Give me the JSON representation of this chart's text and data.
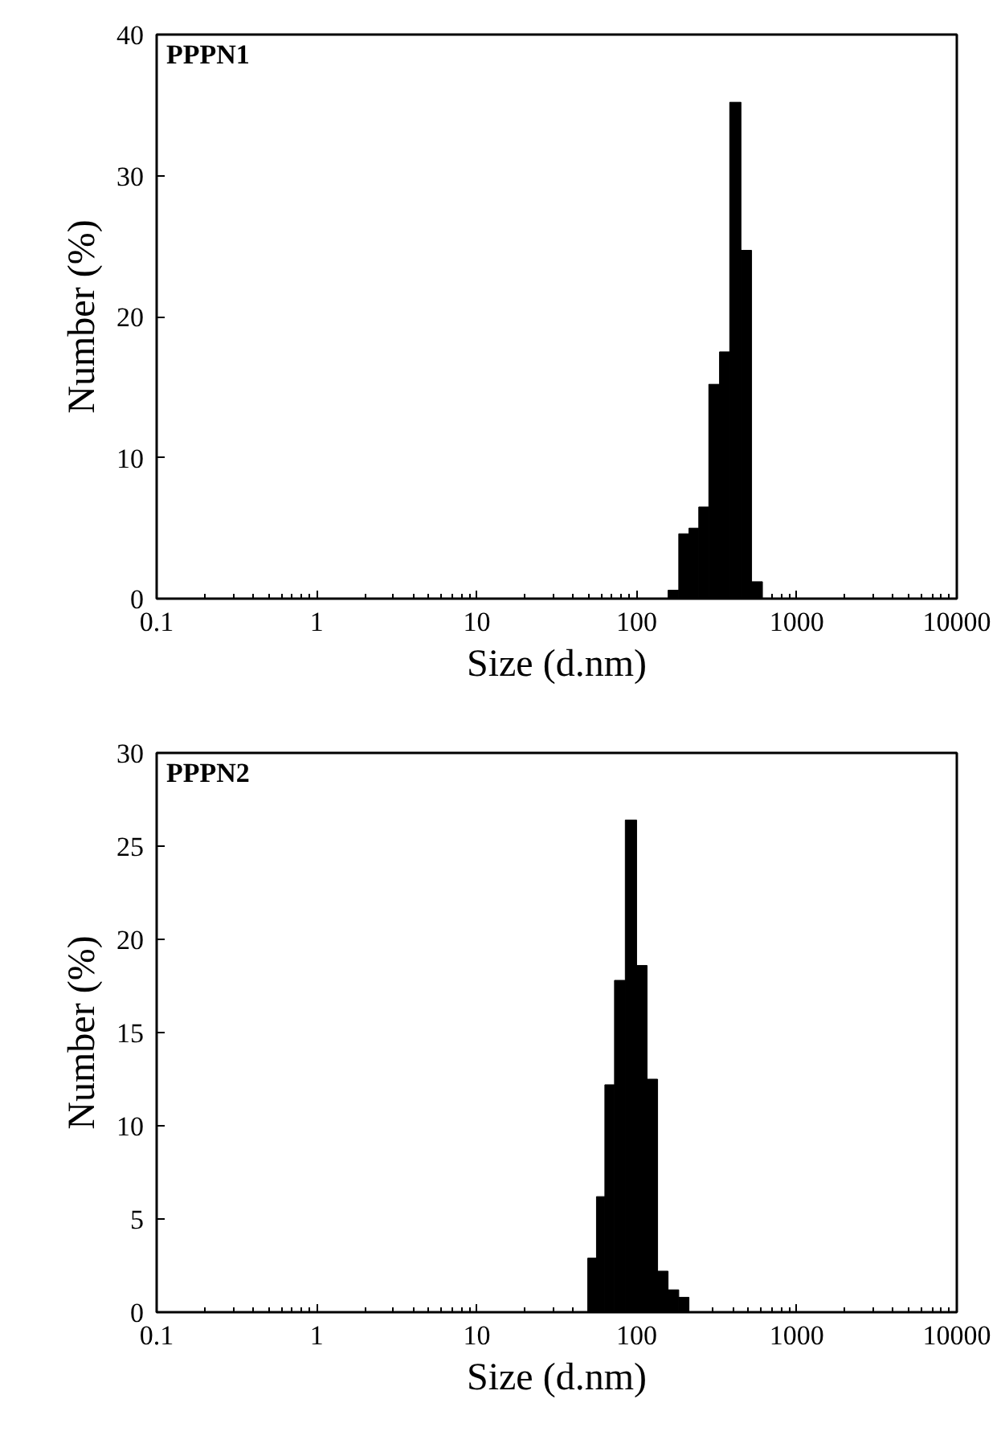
{
  "chart_data": [
    {
      "type": "histogram",
      "title": "PPPN1",
      "xlabel": "Size (d.nm)",
      "ylabel": "Number (%)",
      "log": "x",
      "grid": false,
      "color": "#000000",
      "bins": [
        157,
        183,
        212,
        244,
        282,
        329,
        381,
        448,
        522,
        610
      ],
      "values": [
        0.6,
        4.6,
        5.0,
        6.5,
        15.2,
        17.5,
        35.2,
        24.7,
        1.2
      ],
      "xlim": [
        0.1,
        10000
      ],
      "xticks": [
        0.1,
        1,
        10,
        100,
        1000,
        10000
      ],
      "ylim": [
        0,
        40
      ],
      "yticks": [
        0,
        10,
        20,
        30,
        40
      ]
    },
    {
      "type": "histogram",
      "title": "PPPN2",
      "xlabel": "Size (d.nm)",
      "ylabel": "Number (%)",
      "log": "x",
      "grid": false,
      "color": "#000000",
      "bins": [
        49.4,
        56.0,
        63.2,
        72.6,
        84.8,
        99.8,
        116,
        135,
        157,
        183,
        212
      ],
      "values": [
        2.9,
        6.2,
        12.2,
        17.8,
        26.4,
        18.6,
        12.5,
        2.2,
        1.2,
        0.8
      ],
      "xlim": [
        0.1,
        10000
      ],
      "xticks": [
        0.1,
        1,
        10,
        100,
        1000,
        10000
      ],
      "ylim": [
        0,
        30
      ],
      "yticks": [
        0,
        5,
        10,
        15,
        20,
        25,
        30
      ]
    }
  ]
}
